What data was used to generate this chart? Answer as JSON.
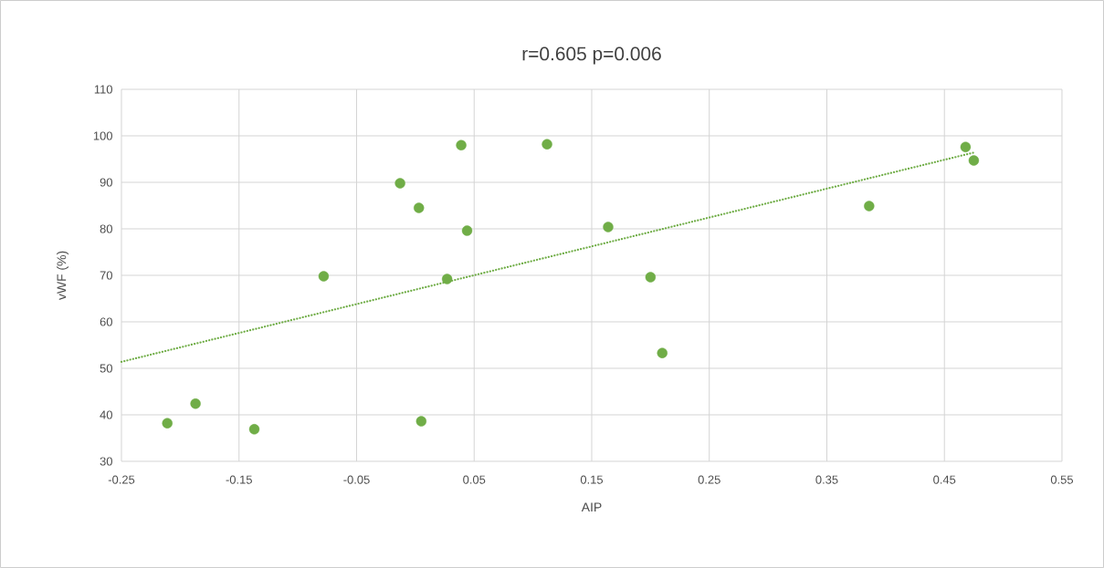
{
  "chart_data": {
    "type": "scatter",
    "title": "r=0.605 p=0.006",
    "xlabel": "AIP",
    "ylabel": "vWF (%)",
    "xlim": [
      -0.25,
      0.55
    ],
    "xticks": [
      -0.25,
      -0.15,
      -0.05,
      0.05,
      0.15,
      0.25,
      0.35,
      0.45,
      0.55
    ],
    "ylim": [
      30,
      110
    ],
    "yticks": [
      30,
      40,
      50,
      60,
      70,
      80,
      90,
      100,
      110
    ],
    "grid": true,
    "series": [
      {
        "color": "#70ad47",
        "marker": "circle",
        "x": [
          -0.211,
          -0.187,
          -0.137,
          -0.078,
          -0.013,
          0.003,
          0.005,
          0.027,
          0.039,
          0.044,
          0.112,
          0.164,
          0.2,
          0.21,
          0.386,
          0.468,
          0.475
        ],
        "values": [
          38.2,
          42.4,
          36.9,
          69.8,
          89.8,
          84.5,
          38.6,
          69.2,
          98.0,
          79.6,
          98.2,
          80.4,
          69.6,
          53.3,
          84.9,
          97.6,
          94.7
        ]
      },
      {
        "type": "line",
        "color": "#70ad47",
        "line_style": "dotted",
        "marker": "none",
        "x": [
          -0.25,
          0.475
        ],
        "values": [
          51.4,
          96.4
        ]
      }
    ]
  }
}
